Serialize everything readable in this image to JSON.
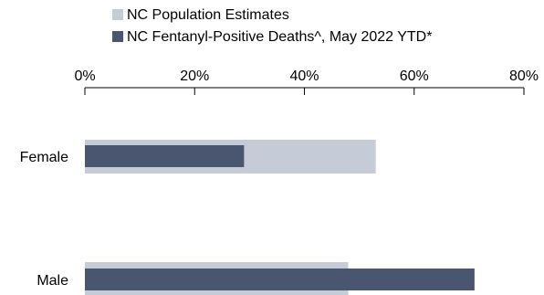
{
  "chart_data": {
    "type": "bar",
    "orientation": "horizontal",
    "categories": [
      "Female",
      "Male"
    ],
    "series": [
      {
        "name": "NC Population Estimates",
        "values": [
          53,
          48
        ],
        "color": "#c5ccd7"
      },
      {
        "name": "NC Fentanyl-Positive Deaths^, May 2022 YTD*",
        "values": [
          29,
          71
        ],
        "color": "#4a5670"
      }
    ],
    "xlim": [
      0,
      80
    ],
    "xticks": [
      0,
      20,
      40,
      60,
      80
    ],
    "tick_labels": [
      "0%",
      "20%",
      "40%",
      "60%",
      "80%"
    ],
    "axis_position": "top",
    "legend_position": "top",
    "grid": false
  }
}
